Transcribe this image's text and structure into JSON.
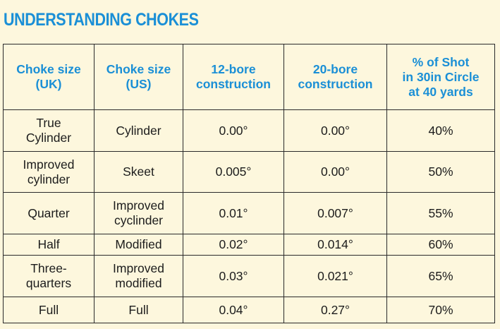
{
  "title": "UNDERSTANDING CHOKES",
  "headers": [
    "Choke size\n(UK)",
    "Choke size\n(US)",
    "12-bore\nconstruction",
    "20-bore\nconstruction",
    "% of Shot\nin 30in Circle\nat 40 yards"
  ],
  "rows": [
    [
      "True\nCylinder",
      "Cylinder",
      "0.00°",
      "0.00°",
      "40%"
    ],
    [
      "Improved\ncylinder",
      "Skeet",
      "0.005°",
      "0.00°",
      "50%"
    ],
    [
      "Quarter",
      "Improved\ncyclinder",
      "0.01°",
      "0.007°",
      "55%"
    ],
    [
      "Half",
      "Modified",
      "0.02°",
      "0.014°",
      "60%"
    ],
    [
      "Three-\nquarters",
      "Improved\nmodified",
      "0.03°",
      "0.021°",
      "65%"
    ],
    [
      "Full",
      "Full",
      "0.04°",
      "0.27°",
      "70%"
    ]
  ]
}
